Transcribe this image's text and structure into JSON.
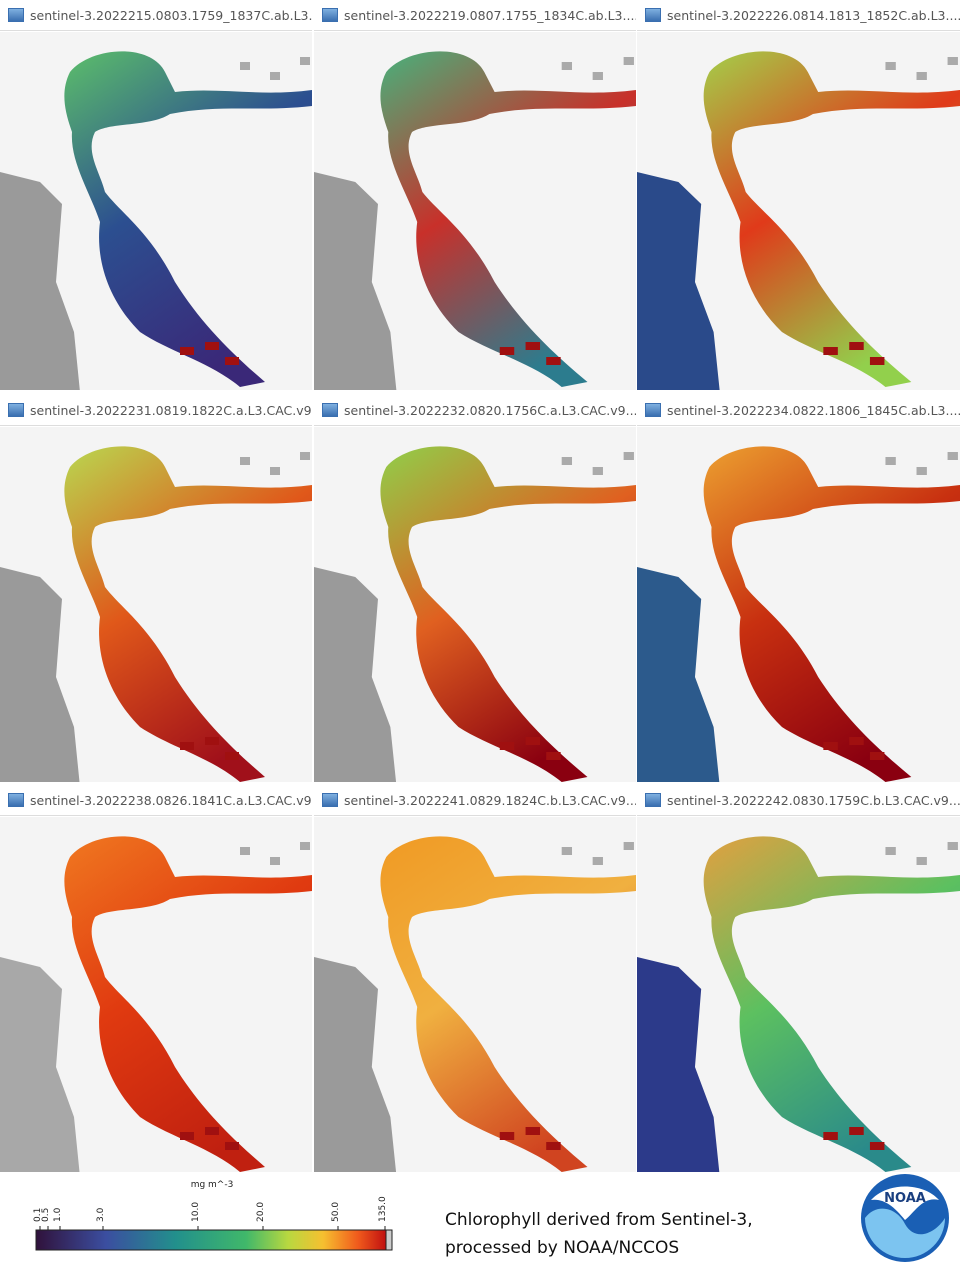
{
  "panels": [
    {
      "title": "sentinel-3.2022215.0803.1759_1837C.ab.L3..."
    },
    {
      "title": "sentinel-3.2022219.0807.1755_1834C.ab.L3...."
    },
    {
      "title": "sentinel-3.2022226.0814.1813_1852C.ab.L3...."
    },
    {
      "title": "sentinel-3.2022231.0819.1822C.a.L3.CAC.v9."
    },
    {
      "title": "sentinel-3.2022232.0820.1756C.a.L3.CAC.v9..."
    },
    {
      "title": "sentinel-3.2022234.0822.1806_1845C.ab.L3...."
    },
    {
      "title": "sentinel-3.2022238.0826.1841C.a.L3.CAC.v9."
    },
    {
      "title": "sentinel-3.2022241.0829.1824C.b.L3.CAC.v9..."
    },
    {
      "title": "sentinel-3.2022242.0830.1759C.b.L3.CAC.v9..."
    }
  ],
  "colorbar": {
    "unit": "mg m^-3",
    "ticks": [
      "0.1",
      "0.5",
      "1.0",
      "3.0",
      "10.0",
      "20.0",
      "50.0",
      "135.0"
    ]
  },
  "caption": {
    "line1": "Chlorophyll derived from Sentinel-3,",
    "line2": "processed by NOAA/NCCOS"
  },
  "logo": {
    "text": "NOAA"
  }
}
